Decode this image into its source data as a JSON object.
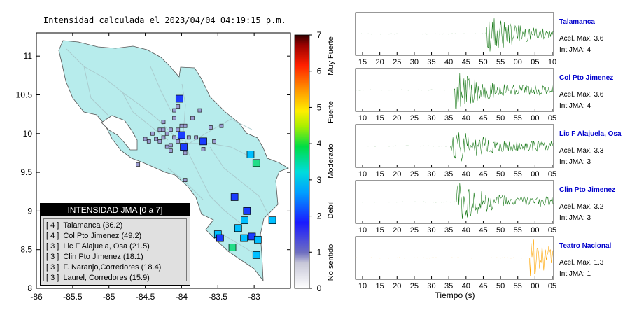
{
  "map": {
    "title": "Intensidad calculada el 2023/04/04_04:19:15_p.m.",
    "lon_ticks": [
      "-86",
      "-85.5",
      "-85",
      "-84.5",
      "-84",
      "-83.5",
      "-83"
    ],
    "lat_ticks": [
      "11",
      "10.5",
      "10",
      "9.5",
      "9",
      "8.5",
      "8"
    ],
    "land_color": "#b7ecec",
    "legend": {
      "title": "INTENSIDAD JMA [0 a 7]",
      "items": [
        {
          "level": "[ 4 ]",
          "name": "Talamanca (36.2)"
        },
        {
          "level": "[ 4 ]",
          "name": "Col Pto Jimenez (49.2)"
        },
        {
          "level": "[ 3 ]",
          "name": "Lic F Alajuela, Osa (21.5)"
        },
        {
          "level": "[ 3 ]",
          "name": "Clin Pto Jimenez (18.1)"
        },
        {
          "level": "[ 3 ]",
          "name": "F. Naranjo,Corredores (18.4)"
        },
        {
          "level": "[ 3 ]",
          "name": "Laurel, Corredores (15.9)"
        }
      ]
    }
  },
  "colorbar": {
    "ticks": [
      "0",
      "1",
      "2",
      "3",
      "4",
      "5",
      "6",
      "7"
    ],
    "labels": [
      "No sentido",
      "Debil",
      "Moderado",
      "Fuerte",
      "Muy Fuerte"
    ]
  },
  "traces": [
    {
      "name": "Talamanca",
      "accel": "Acel. Max. 3.6",
      "jma": "Int JMA: 4",
      "color": "#1a7a1a",
      "name_color": "#0000cc",
      "ticks": [
        "15",
        "20",
        "25",
        "30",
        "35",
        "40",
        "45",
        "50",
        "55",
        "00",
        "05",
        "10"
      ]
    },
    {
      "name": "Col Pto Jimenez",
      "accel": "Acel. Max. 3.6",
      "jma": "Int JMA: 4",
      "color": "#1a7a1a",
      "name_color": "#0000cc",
      "ticks": [
        "10",
        "15",
        "20",
        "25",
        "30",
        "35",
        "40",
        "45",
        "50",
        "55",
        "00",
        "05"
      ]
    },
    {
      "name": "Lic F Alajuela, Osa",
      "accel": "Acel. Max. 3.3",
      "jma": "Int JMA: 3",
      "color": "#1a7a1a",
      "name_color": "#0000cc",
      "ticks": [
        "10",
        "15",
        "20",
        "25",
        "30",
        "35",
        "40",
        "45",
        "50",
        "55",
        "00",
        "05"
      ]
    },
    {
      "name": "Clin Pto Jimenez",
      "accel": "Acel. Max. 3.2",
      "jma": "Int JMA: 3",
      "color": "#1a7a1a",
      "name_color": "#0000cc",
      "ticks": [
        "10",
        "15",
        "20",
        "25",
        "30",
        "35",
        "40",
        "45",
        "50",
        "55",
        "00",
        "05"
      ]
    },
    {
      "name": "Teatro Nacional",
      "accel": "Acel. Max. 1.3",
      "jma": "Int JMA: 1",
      "color": "#ffa500",
      "name_color": "#0000cc",
      "ticks": [
        "10",
        "15",
        "20",
        "25",
        "30",
        "35",
        "40",
        "45",
        "50",
        "55",
        "00",
        "05"
      ]
    }
  ],
  "xlabel": "Tiempo (s)",
  "chart_data": {
    "type": "scatter",
    "title": "Intensidad calculada el 2023/04/04_04:19:15_p.m.",
    "xlim": [
      -86,
      -82.5
    ],
    "ylim": [
      8,
      11.3
    ],
    "colorbar_range": [
      0,
      7
    ],
    "stations": [
      {
        "lon": -84.03,
        "lat": 10.45,
        "jma": 2
      },
      {
        "lon": -83.97,
        "lat": 9.83,
        "jma": 2
      },
      {
        "lon": -84.0,
        "lat": 9.98,
        "jma": 2
      },
      {
        "lon": -83.7,
        "lat": 9.9,
        "jma": 2
      },
      {
        "lon": -83.05,
        "lat": 9.73,
        "jma": 3
      },
      {
        "lon": -82.97,
        "lat": 9.62,
        "jma": 4
      },
      {
        "lon": -83.27,
        "lat": 9.18,
        "jma": 2
      },
      {
        "lon": -83.1,
        "lat": 9.0,
        "jma": 2
      },
      {
        "lon": -83.13,
        "lat": 8.88,
        "jma": 3
      },
      {
        "lon": -83.22,
        "lat": 8.78,
        "jma": 3
      },
      {
        "lon": -82.75,
        "lat": 8.88,
        "jma": 3
      },
      {
        "lon": -83.5,
        "lat": 8.7,
        "jma": 3
      },
      {
        "lon": -83.47,
        "lat": 8.65,
        "jma": 2
      },
      {
        "lon": -83.3,
        "lat": 8.53,
        "jma": 4
      },
      {
        "lon": -83.14,
        "lat": 8.65,
        "jma": 3
      },
      {
        "lon": -83.03,
        "lat": 8.67,
        "jma": 2
      },
      {
        "lon": -82.95,
        "lat": 8.63,
        "jma": 3
      },
      {
        "lon": -82.97,
        "lat": 8.43,
        "jma": 3
      }
    ]
  }
}
